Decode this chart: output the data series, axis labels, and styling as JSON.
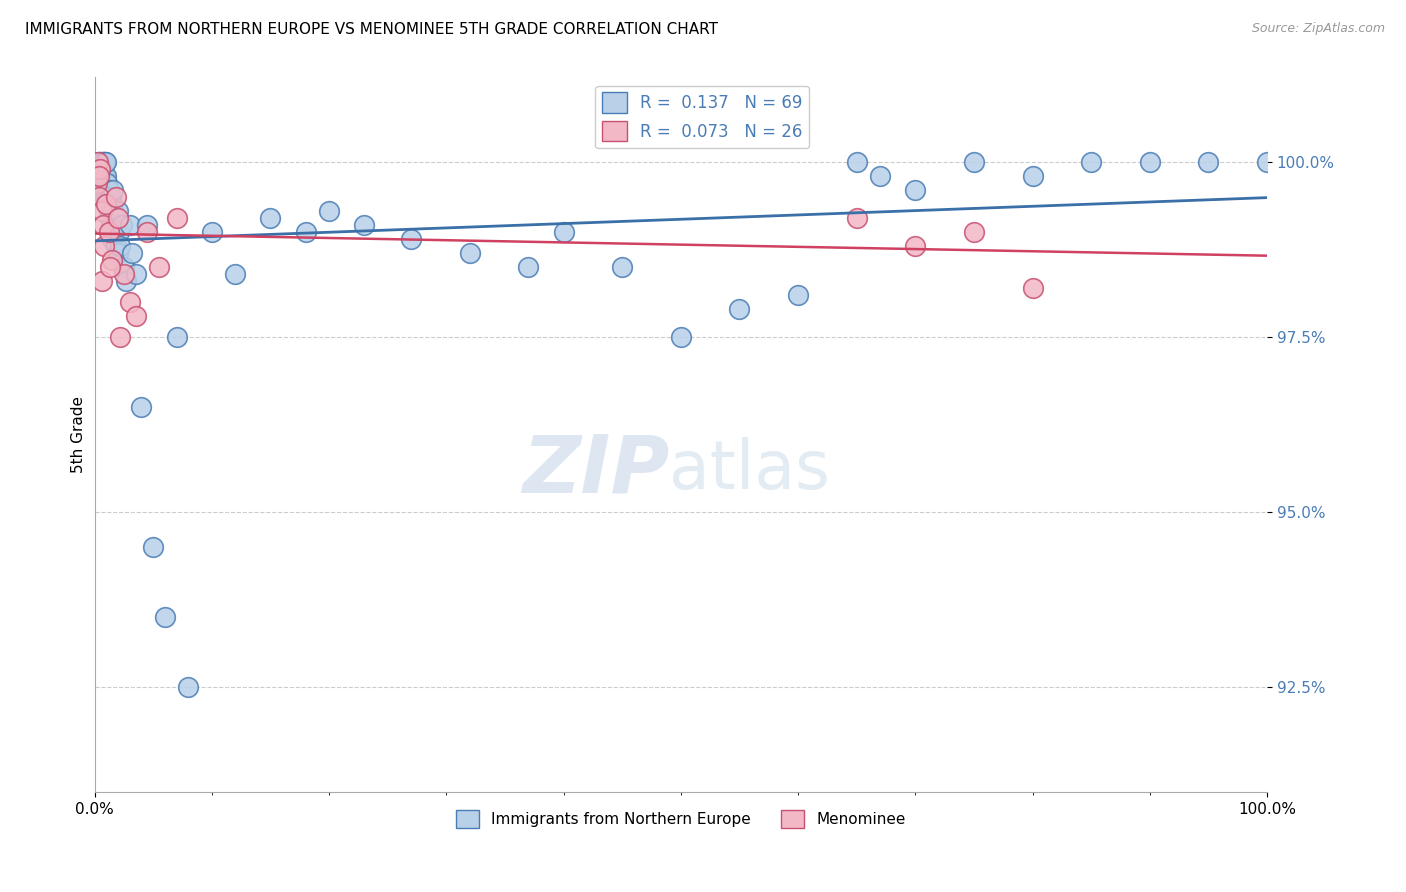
{
  "title": "IMMIGRANTS FROM NORTHERN EUROPE VS MENOMINEE 5TH GRADE CORRELATION CHART",
  "source": "Source: ZipAtlas.com",
  "ylabel": "5th Grade",
  "ytick_values": [
    92.5,
    95.0,
    97.5,
    100.0
  ],
  "xlim": [
    0.0,
    100.0
  ],
  "ylim": [
    91.0,
    101.2
  ],
  "blue_R": 0.137,
  "blue_N": 69,
  "pink_R": 0.073,
  "pink_N": 26,
  "blue_fill": "#b8d0e8",
  "blue_edge": "#4a7db5",
  "pink_fill": "#f2b8c6",
  "pink_edge": "#c85070",
  "blue_line": "#3a6fa8",
  "pink_line": "#d04060",
  "watermark_zip": "ZIP",
  "watermark_atlas": "atlas",
  "blue_x": [
    0.3,
    0.4,
    0.5,
    0.5,
    0.6,
    0.6,
    0.7,
    0.7,
    0.8,
    0.8,
    0.9,
    0.9,
    1.0,
    1.0,
    1.0,
    1.1,
    1.1,
    1.2,
    1.2,
    1.3,
    1.3,
    1.4,
    1.4,
    1.5,
    1.5,
    1.6,
    1.6,
    1.7,
    1.8,
    1.9,
    2.0,
    2.0,
    2.1,
    2.2,
    2.3,
    2.5,
    2.7,
    3.0,
    3.2,
    3.5,
    4.0,
    4.5,
    5.0,
    6.0,
    7.0,
    8.0,
    10.0,
    12.0,
    15.0,
    18.0,
    20.0,
    23.0,
    27.0,
    32.0,
    37.0,
    40.0,
    45.0,
    50.0,
    55.0,
    60.0,
    65.0,
    67.0,
    70.0,
    75.0,
    80.0,
    85.0,
    90.0,
    95.0,
    100.0
  ],
  "blue_y": [
    99.9,
    100.0,
    99.8,
    100.0,
    99.7,
    100.0,
    99.9,
    100.0,
    99.8,
    100.0,
    99.7,
    100.0,
    99.5,
    99.8,
    100.0,
    99.5,
    99.7,
    99.3,
    99.6,
    99.2,
    99.5,
    99.1,
    99.5,
    98.9,
    99.4,
    99.3,
    99.6,
    99.2,
    98.8,
    99.1,
    99.3,
    98.7,
    99.0,
    98.8,
    99.1,
    98.5,
    98.3,
    99.1,
    98.7,
    98.4,
    96.5,
    99.1,
    94.5,
    93.5,
    97.5,
    92.5,
    99.0,
    98.4,
    99.2,
    99.0,
    99.3,
    99.1,
    98.9,
    98.7,
    98.5,
    99.0,
    98.5,
    97.5,
    97.9,
    98.1,
    100.0,
    99.8,
    99.6,
    100.0,
    99.8,
    100.0,
    100.0,
    100.0,
    100.0
  ],
  "pink_x": [
    0.2,
    0.3,
    0.4,
    0.5,
    0.6,
    0.7,
    0.8,
    1.0,
    1.2,
    1.5,
    1.8,
    2.0,
    2.5,
    3.0,
    3.5,
    4.5,
    5.5,
    7.0,
    65.0,
    70.0,
    75.0,
    80.0,
    0.4,
    0.6,
    1.3,
    2.2
  ],
  "pink_y": [
    99.7,
    100.0,
    99.5,
    99.9,
    99.3,
    99.1,
    98.8,
    99.4,
    99.0,
    98.6,
    99.5,
    99.2,
    98.4,
    98.0,
    97.8,
    99.0,
    98.5,
    99.2,
    99.2,
    98.8,
    99.0,
    98.2,
    99.8,
    98.3,
    98.5,
    97.5
  ]
}
